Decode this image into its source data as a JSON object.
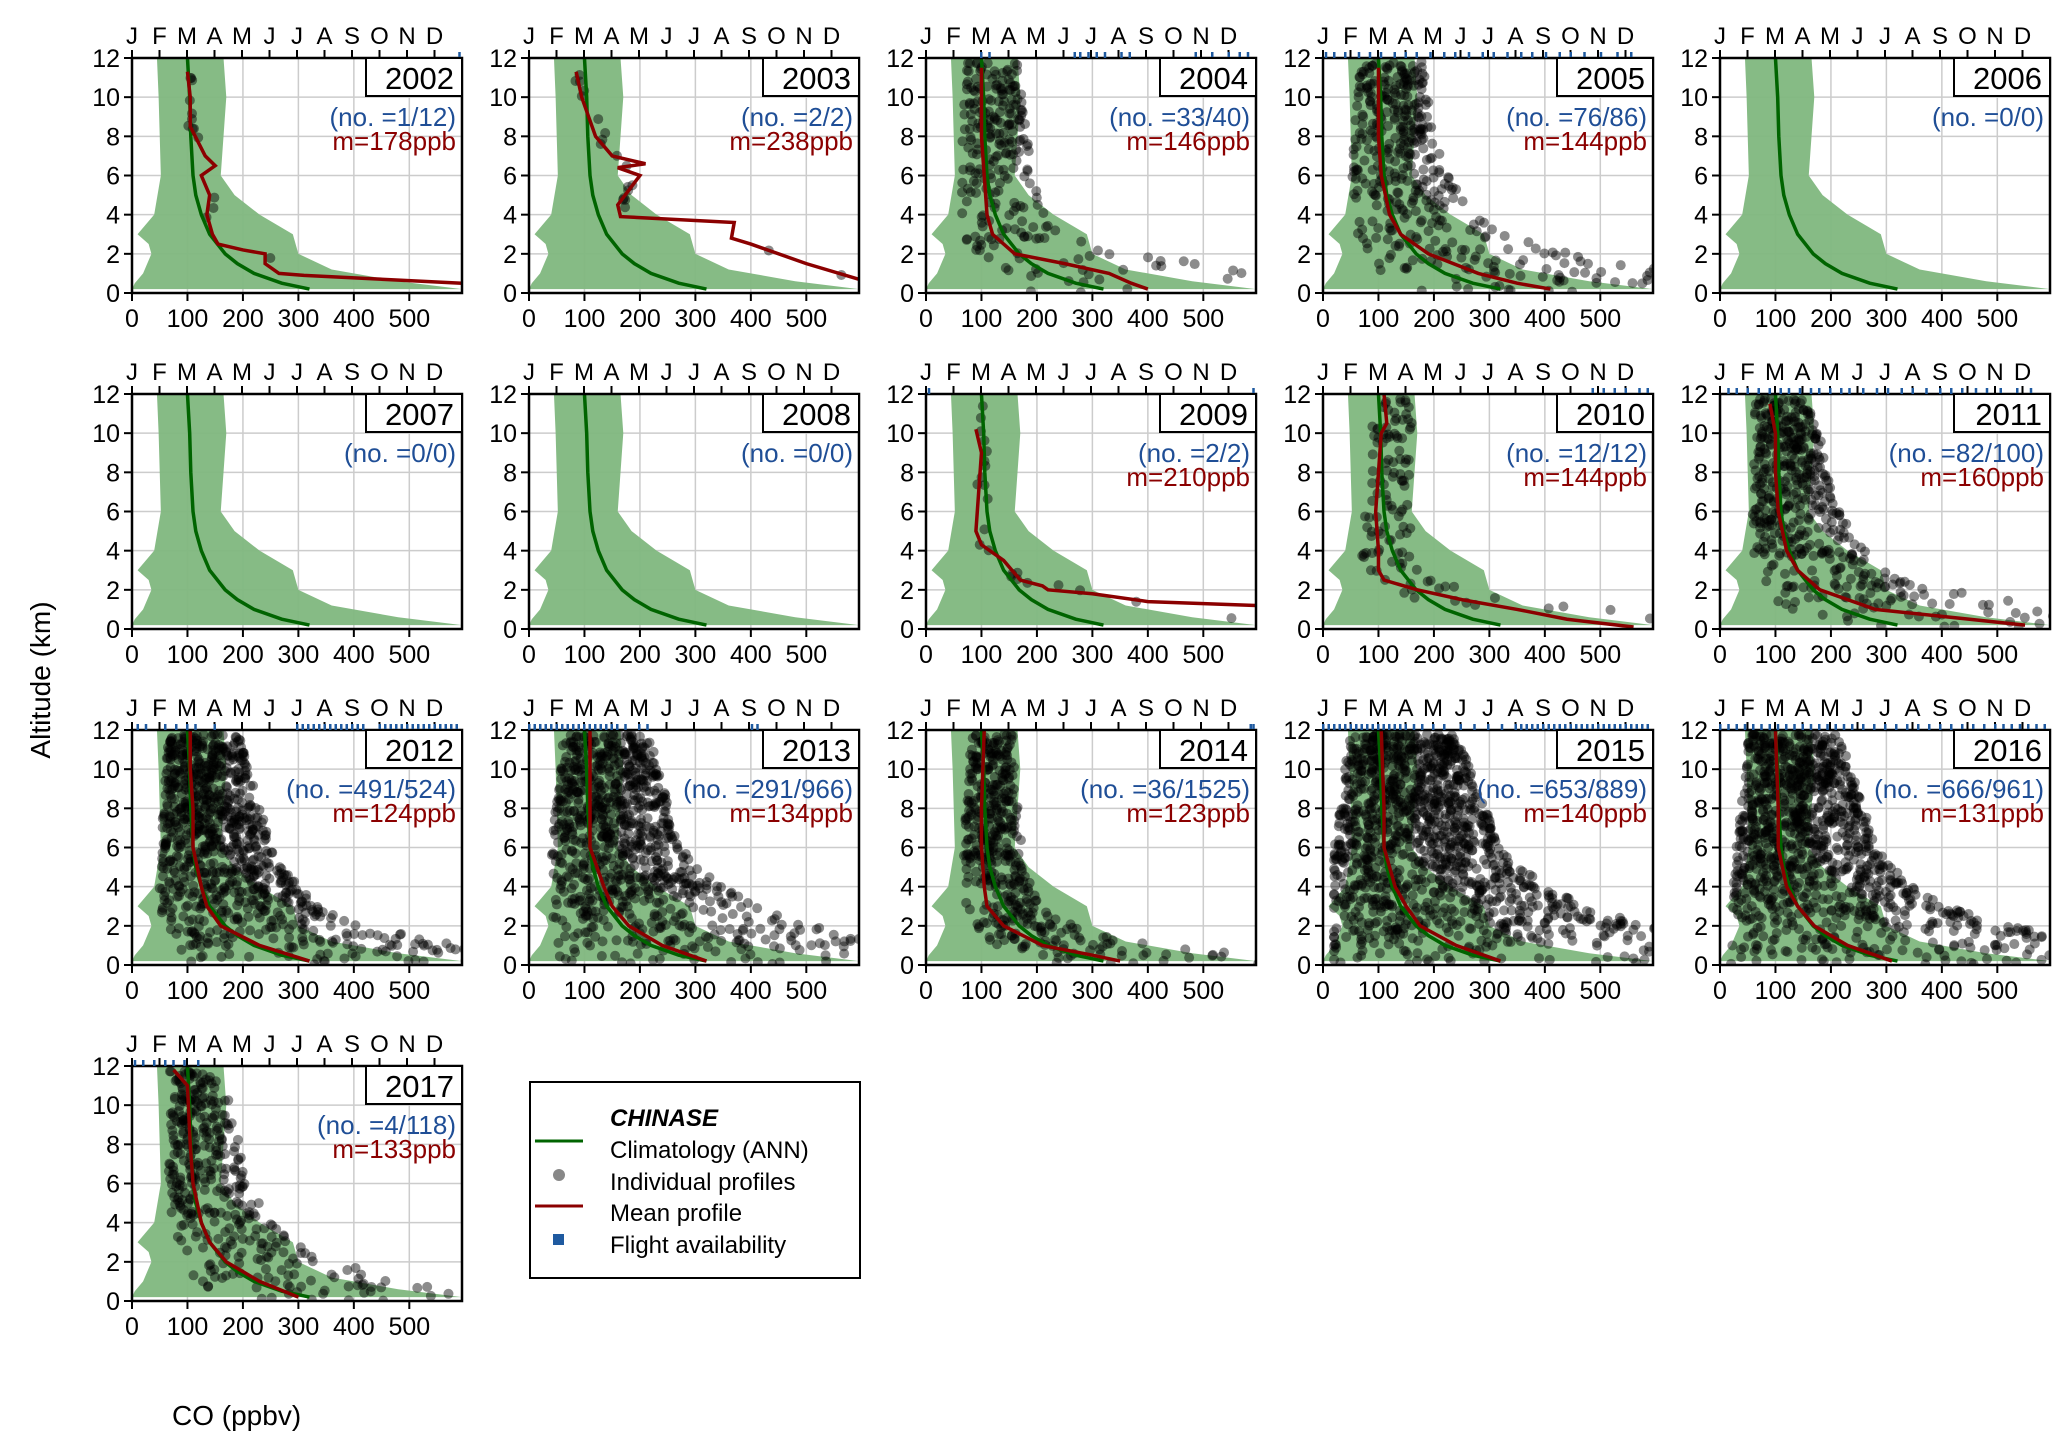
{
  "chart_data": {
    "type": "scatter",
    "ylabel": "Altitude (km)",
    "xlabel": "CO (ppbv)",
    "xlim": [
      0,
      595
    ],
    "ylim": [
      0,
      12
    ],
    "xticks": [
      0,
      100,
      200,
      300,
      400,
      500
    ],
    "yticks": [
      0,
      2,
      4,
      6,
      8,
      10,
      12
    ],
    "month_ticks": [
      "J",
      "F",
      "M",
      "A",
      "M",
      "J",
      "J",
      "A",
      "S",
      "O",
      "N",
      "D"
    ],
    "grid": true,
    "colors": {
      "climatology": "#006400",
      "envelope": "#7fb77e",
      "mean": "#8b0000",
      "points": "#000000",
      "flights": "#1f5aa0",
      "count_text": "#1f4e96",
      "mean_text": "#8b0000"
    },
    "legend": {
      "placement": "lower-middle",
      "title": "CHINASE",
      "entries": [
        "Climatology (ANN)",
        "Individual profiles",
        "Mean profile",
        "Flight availability"
      ]
    },
    "climatology": {
      "mean": [
        [
          12,
          100
        ],
        [
          10,
          104
        ],
        [
          8,
          106
        ],
        [
          6,
          110
        ],
        [
          5,
          115
        ],
        [
          4,
          125
        ],
        [
          3,
          140
        ],
        [
          2,
          168
        ],
        [
          1.5,
          190
        ],
        [
          1,
          220
        ],
        [
          0.5,
          270
        ],
        [
          0.2,
          320
        ]
      ],
      "lower": [
        [
          12,
          45
        ],
        [
          10,
          48
        ],
        [
          8,
          50
        ],
        [
          6,
          52
        ],
        [
          4,
          40
        ],
        [
          3,
          10
        ],
        [
          2.5,
          30
        ],
        [
          2,
          35
        ],
        [
          1,
          20
        ],
        [
          0.5,
          5
        ],
        [
          0.2,
          0
        ]
      ],
      "upper": [
        [
          12,
          165
        ],
        [
          10,
          170
        ],
        [
          8,
          165
        ],
        [
          6,
          160
        ],
        [
          5,
          185
        ],
        [
          4,
          230
        ],
        [
          3,
          290
        ],
        [
          2,
          300
        ],
        [
          1.2,
          360
        ],
        [
          0.6,
          480
        ],
        [
          0.2,
          595
        ]
      ]
    },
    "panels": [
      {
        "year": "2002",
        "count": "(no. =1/12)",
        "mean_label": "m=178ppb",
        "flights": [
          11.9
        ],
        "mean": [
          [
            11.3,
            100
          ],
          [
            10,
            105
          ],
          [
            8.5,
            105
          ],
          [
            7,
            132
          ],
          [
            6.5,
            150
          ],
          [
            6,
            125
          ],
          [
            5,
            140
          ],
          [
            4,
            135
          ],
          [
            3,
            145
          ],
          [
            2.5,
            155
          ],
          [
            2.2,
            200
          ],
          [
            2,
            240
          ],
          [
            1.5,
            240
          ],
          [
            1,
            265
          ],
          [
            0.9,
            310
          ],
          [
            0.5,
            595
          ]
        ]
      },
      {
        "year": "2003",
        "count": "(no. =2/2)",
        "mean_label": "m=238ppb",
        "flights": [],
        "mean": [
          [
            11.3,
            85
          ],
          [
            10,
            95
          ],
          [
            8,
            120
          ],
          [
            7,
            150
          ],
          [
            6.6,
            210
          ],
          [
            6.4,
            160
          ],
          [
            6,
            200
          ],
          [
            4.5,
            160
          ],
          [
            3.9,
            165
          ],
          [
            3.6,
            370
          ],
          [
            2.8,
            365
          ],
          [
            2.5,
            400
          ],
          [
            1.5,
            500
          ],
          [
            0.7,
            595
          ]
        ]
      },
      {
        "year": "2004",
        "count": "(no. =33/40)",
        "mean_label": "m=146ppb",
        "flights": [
          2.0,
          2.3,
          5.4,
          5.6,
          5.9,
          6.2,
          6.5,
          7.1,
          7.4,
          9.8,
          10.4,
          11.0,
          11.4,
          11.7
        ],
        "mean": [
          [
            11.5,
            100
          ],
          [
            10,
            100
          ],
          [
            8,
            100
          ],
          [
            6,
            105
          ],
          [
            4,
            110
          ],
          [
            3,
            120
          ],
          [
            2,
            160
          ],
          [
            1.5,
            250
          ],
          [
            1,
            330
          ],
          [
            0.5,
            370
          ],
          [
            0.2,
            400
          ]
        ]
      },
      {
        "year": "2005",
        "count": "(no. =76/86)",
        "mean_label": "m=144ppb",
        "flights": [
          0.1,
          0.4,
          0.8,
          1.3,
          1.7,
          2.1,
          2.6,
          3.0,
          3.4,
          3.9,
          4.4,
          4.8,
          5.3,
          5.8,
          6.2,
          6.7,
          7.2,
          7.6,
          8.1,
          8.6,
          9.0,
          9.5,
          10.1,
          10.7,
          11.2
        ],
        "mean": [
          [
            11.5,
            100
          ],
          [
            8,
            100
          ],
          [
            6,
            105
          ],
          [
            4,
            120
          ],
          [
            3,
            140
          ],
          [
            2,
            190
          ],
          [
            1,
            280
          ],
          [
            0.5,
            350
          ],
          [
            0.2,
            410
          ]
        ]
      },
      {
        "year": "2006",
        "count": "(no. =0/0)",
        "mean_label": "",
        "flights": [],
        "mean": []
      },
      {
        "year": "2007",
        "count": "(no. =0/0)",
        "mean_label": "",
        "flights": [],
        "mean": []
      },
      {
        "year": "2008",
        "count": "(no. =0/0)",
        "mean_label": "",
        "flights": [],
        "mean": []
      },
      {
        "year": "2009",
        "count": "(no. =2/2)",
        "mean_label": "m=210ppb",
        "flights": [
          0.1,
          11.9
        ],
        "mean": [
          [
            10.2,
            90
          ],
          [
            9,
            100
          ],
          [
            7,
            95
          ],
          [
            5,
            90
          ],
          [
            4.3,
            100
          ],
          [
            3.5,
            140
          ],
          [
            2.5,
            170
          ],
          [
            2.2,
            210
          ],
          [
            2,
            220
          ],
          [
            1.8,
            300
          ],
          [
            1.4,
            400
          ],
          [
            1.2,
            595
          ]
        ]
      },
      {
        "year": "2010",
        "count": "(no. =12/12)",
        "mean_label": "m=144ppb",
        "flights": [
          9.8,
          10.2,
          10.6,
          11.0,
          11.5,
          11.8
        ],
        "mean": [
          [
            12,
            110
          ],
          [
            10.5,
            115
          ],
          [
            10,
            105
          ],
          [
            8,
            100
          ],
          [
            6,
            95
          ],
          [
            4,
            100
          ],
          [
            3,
            100
          ],
          [
            2.5,
            110
          ],
          [
            2,
            170
          ],
          [
            1.5,
            250
          ],
          [
            1,
            350
          ],
          [
            0.5,
            440
          ],
          [
            0.3,
            500
          ],
          [
            0.1,
            560
          ]
        ]
      },
      {
        "year": "2011",
        "count": "(no. =82/100)",
        "mean_label": "m=160ppb",
        "flights": [
          0.3,
          0.6,
          1.0,
          1.4,
          1.8,
          2.2,
          2.5,
          2.9,
          3.3,
          3.6,
          4.0,
          4.4,
          4.7,
          5.2,
          5.7,
          6.1,
          6.6,
          7.0,
          7.5,
          8.0,
          8.4,
          8.8,
          9.3,
          9.7,
          10.2,
          10.8,
          11.3
        ],
        "mean": [
          [
            11.5,
            90
          ],
          [
            10,
            100
          ],
          [
            8,
            100
          ],
          [
            6,
            105
          ],
          [
            4,
            120
          ],
          [
            3,
            140
          ],
          [
            2,
            180
          ],
          [
            1,
            280
          ],
          [
            0.5,
            450
          ],
          [
            0.2,
            550
          ]
        ]
      },
      {
        "year": "2012",
        "count": "(no. =491/524)",
        "mean_label": "m=124ppb",
        "flights": [
          0.2,
          0.5,
          1.2,
          1.6,
          2.0,
          2.3,
          3.0,
          6.0,
          6.2,
          6.4,
          6.6,
          6.8,
          7.0,
          7.2,
          7.4,
          7.6,
          7.8,
          8.0,
          8.2,
          8.4,
          9.0,
          9.2,
          9.4,
          9.6,
          9.8,
          10.0,
          10.2,
          10.4,
          10.6,
          10.8,
          11.0,
          11.2,
          11.4,
          11.6,
          11.8
        ],
        "mean": [
          [
            12,
            105
          ],
          [
            10,
            105
          ],
          [
            8,
            110
          ],
          [
            6,
            110
          ],
          [
            4,
            125
          ],
          [
            3,
            135
          ],
          [
            2,
            160
          ],
          [
            1,
            230
          ],
          [
            0.2,
            320
          ]
        ]
      },
      {
        "year": "2013",
        "count": "(no. =291/966)",
        "mean_label": "m=134ppb",
        "flights": [
          0.0,
          0.2,
          0.4,
          0.6,
          0.8,
          1.0,
          1.2,
          1.4,
          1.6,
          1.8,
          2.0,
          2.2,
          2.4,
          2.6,
          2.8,
          3.0,
          3.2,
          3.5,
          4.0,
          4.3,
          8.1,
          8.3
        ],
        "mean": [
          [
            12,
            110
          ],
          [
            8,
            110
          ],
          [
            6,
            110
          ],
          [
            4,
            135
          ],
          [
            3,
            150
          ],
          [
            2,
            180
          ],
          [
            1,
            240
          ],
          [
            0.2,
            320
          ]
        ]
      },
      {
        "year": "2014",
        "count": "(no. =36/1525)",
        "mean_label": "m=123ppb",
        "flights": [
          11.8,
          11.9
        ],
        "mean": [
          [
            12,
            105
          ],
          [
            8,
            100
          ],
          [
            6,
            100
          ],
          [
            4,
            105
          ],
          [
            3,
            110
          ],
          [
            2,
            140
          ],
          [
            1,
            210
          ],
          [
            0.5,
            300
          ],
          [
            0.2,
            350
          ]
        ]
      },
      {
        "year": "2015",
        "count": "(no. =653/889)",
        "mean_label": "m=140ppb",
        "flights": [
          0.0,
          0.2,
          0.4,
          0.6,
          0.8,
          1.0,
          1.2,
          1.4,
          1.6,
          1.8,
          2.0,
          2.2,
          2.4,
          2.6,
          2.8,
          3.0,
          3.3,
          3.6,
          4.0,
          4.4,
          5.0,
          5.5,
          6.0,
          6.5,
          7.0,
          7.2,
          7.4,
          7.6,
          7.8,
          8.0,
          8.2,
          8.4,
          8.6,
          8.8,
          9.0,
          9.2,
          9.4,
          9.6,
          9.8,
          10.0,
          10.2,
          10.4,
          10.6,
          10.8,
          11.0,
          11.2,
          11.4,
          11.6,
          11.8
        ],
        "mean": [
          [
            12,
            105
          ],
          [
            8,
            110
          ],
          [
            6,
            110
          ],
          [
            4,
            130
          ],
          [
            3,
            150
          ],
          [
            2,
            175
          ],
          [
            1,
            240
          ],
          [
            0.2,
            320
          ]
        ]
      },
      {
        "year": "2016",
        "count": "(no. =666/961)",
        "mean_label": "m=131ppb",
        "flights": [
          0.0,
          0.3,
          0.6,
          0.9,
          1.2,
          1.5,
          1.8,
          2.1,
          2.4,
          2.7,
          3.0,
          3.3,
          3.6,
          3.9,
          4.2,
          4.5,
          4.8,
          5.2,
          5.6,
          6.0,
          6.4,
          6.8,
          7.2,
          7.6,
          8.0,
          8.4,
          8.8,
          9.2,
          9.6,
          10.0,
          10.3,
          10.6,
          10.9,
          11.2,
          11.5,
          11.8
        ],
        "mean": [
          [
            12,
            100
          ],
          [
            8,
            105
          ],
          [
            6,
            105
          ],
          [
            4,
            120
          ],
          [
            3,
            140
          ],
          [
            2,
            170
          ],
          [
            1,
            230
          ],
          [
            0.2,
            310
          ]
        ]
      },
      {
        "year": "2017",
        "count": "(no. =4/118)",
        "mean_label": "m=133ppb",
        "flights": [
          0.1,
          0.4,
          0.8,
          1.2,
          1.5,
          1.9,
          2.4
        ],
        "mean": [
          [
            11.8,
            75
          ],
          [
            11,
            100
          ],
          [
            8,
            105
          ],
          [
            6,
            110
          ],
          [
            4,
            125
          ],
          [
            3,
            140
          ],
          [
            2,
            170
          ],
          [
            1,
            230
          ],
          [
            0.2,
            300
          ]
        ]
      }
    ]
  }
}
